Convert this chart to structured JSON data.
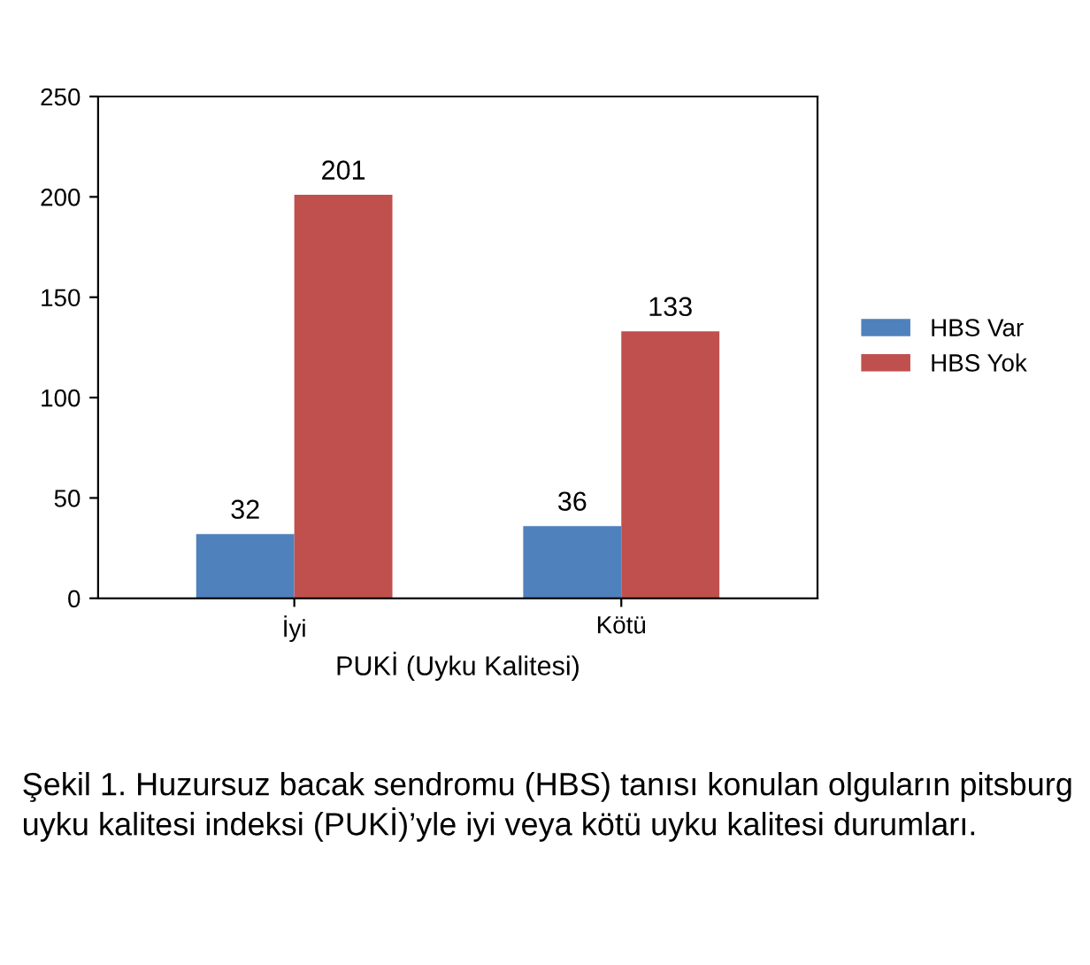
{
  "chart_data": {
    "type": "bar",
    "xlabel": "PUKİ (Uyku Kalitesi)",
    "categories": [
      "İyi",
      "Kötü"
    ],
    "series": [
      {
        "name": "HBS Var",
        "color": "#4f81bd",
        "values": [
          32,
          36
        ]
      },
      {
        "name": "HBS Yok",
        "color": "#c0504d",
        "values": [
          201,
          133
        ]
      }
    ],
    "ylim": [
      0,
      250
    ],
    "yticks": [
      0,
      50,
      100,
      150,
      200,
      250
    ],
    "data_labels": true,
    "legend": "right",
    "grid": false,
    "annotations": [
      "Şekil 1. Huzursuz bacak sendromu (HBS) tanısı konulan olguların pitsburg uyku kalitesi indeksi (PUKİ)’yle iyi veya kötü uyku kalitesi durumları."
    ]
  }
}
